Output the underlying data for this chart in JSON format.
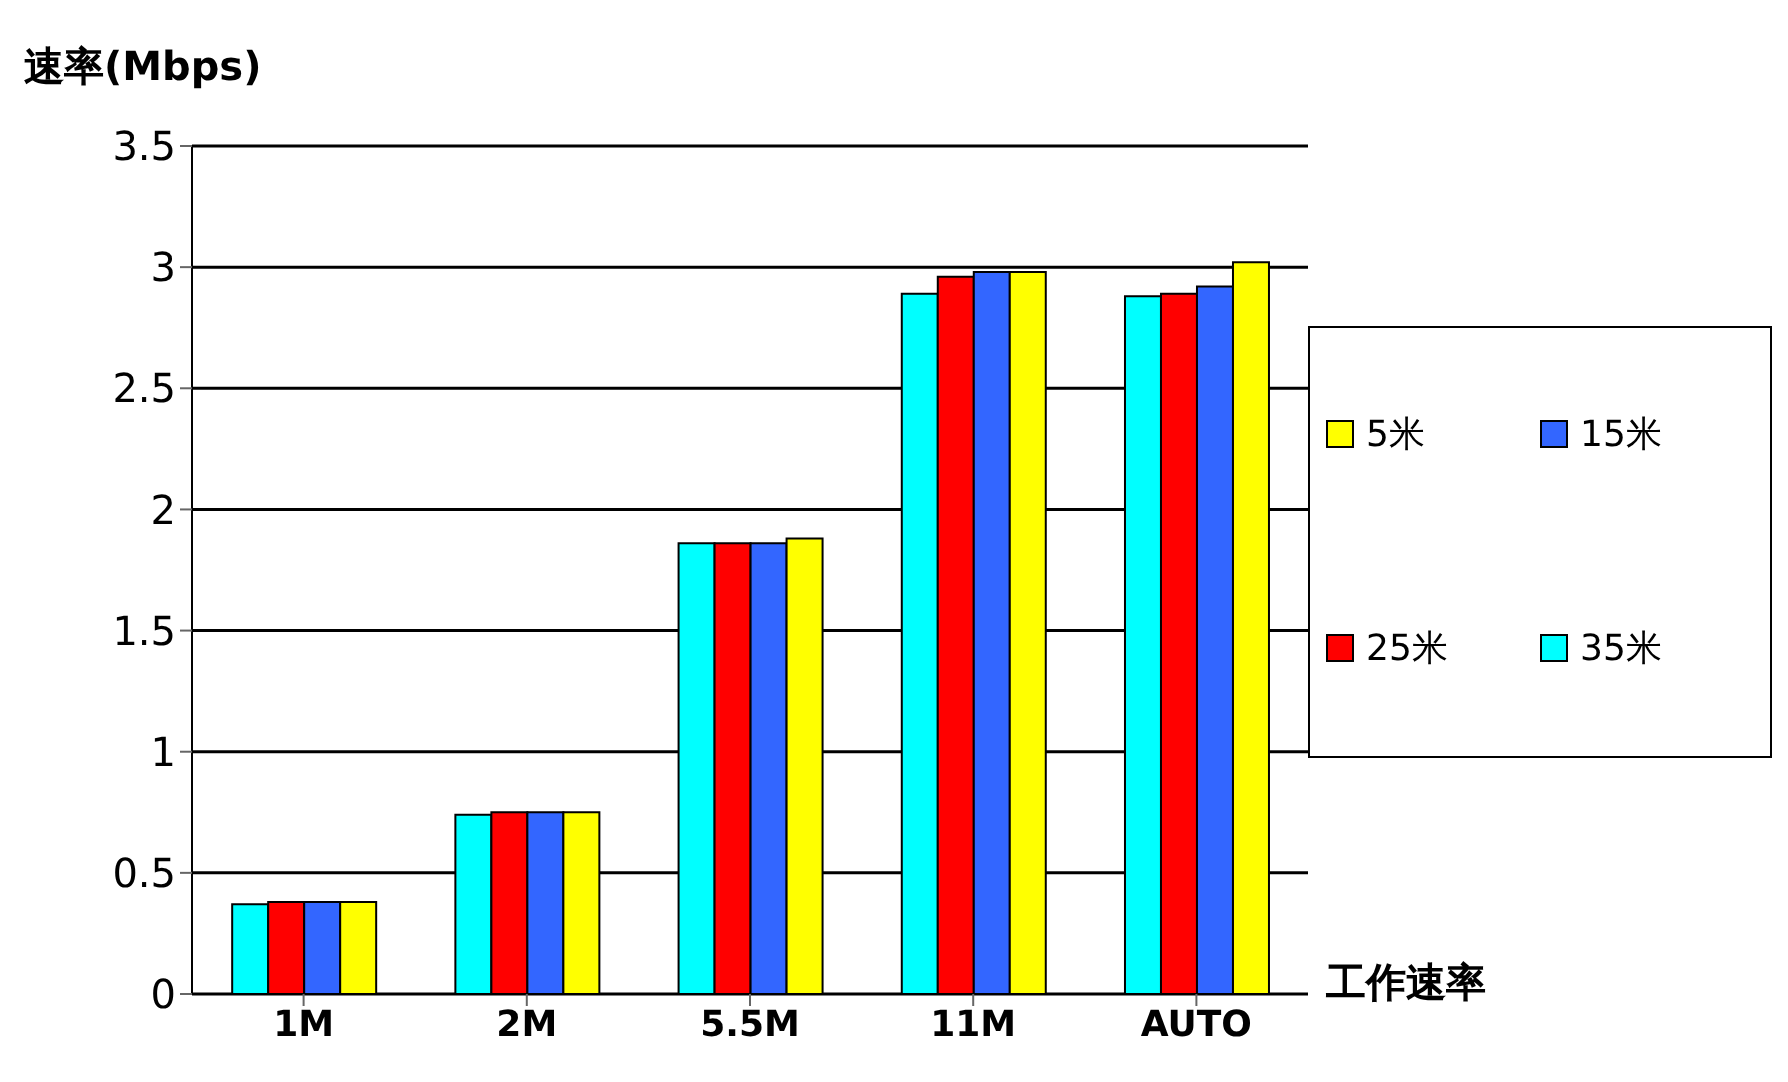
{
  "chart_data": {
    "type": "bar",
    "ylabel": "速率(Mbps)",
    "xlabel": "工作速率",
    "categories": [
      "1M",
      "2M",
      "5.5M",
      "11M",
      "AUTO"
    ],
    "series": [
      {
        "name": "35米",
        "color": "#00ffff",
        "values": [
          0.37,
          0.74,
          1.86,
          2.89,
          2.88
        ]
      },
      {
        "name": "25米",
        "color": "#ff0000",
        "values": [
          0.38,
          0.75,
          1.86,
          2.96,
          2.89
        ]
      },
      {
        "name": "15米",
        "color": "#3366ff",
        "values": [
          0.38,
          0.75,
          1.86,
          2.98,
          2.92
        ]
      },
      {
        "name": "5米",
        "color": "#ffff00",
        "values": [
          0.38,
          0.75,
          1.88,
          2.98,
          3.02
        ]
      }
    ],
    "ylim": [
      0,
      3.5
    ],
    "yticks": [
      0,
      0.5,
      1,
      1.5,
      2,
      2.5,
      3,
      3.5
    ],
    "grid": "y",
    "legend": "right"
  }
}
